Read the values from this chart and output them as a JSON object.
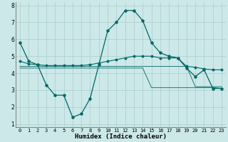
{
  "xlabel": "Humidex (Indice chaleur)",
  "bg_color": "#cce8e8",
  "grid_color": "#aacccc",
  "line_color": "#006666",
  "xlim": [
    -0.5,
    23.5
  ],
  "ylim": [
    0.8,
    8.2
  ],
  "xticks": [
    0,
    1,
    2,
    3,
    4,
    5,
    6,
    7,
    8,
    9,
    10,
    11,
    12,
    13,
    14,
    15,
    16,
    17,
    18,
    19,
    20,
    21,
    22,
    23
  ],
  "yticks": [
    1,
    2,
    3,
    4,
    5,
    6,
    7,
    8
  ],
  "line1_x": [
    0,
    1,
    2,
    3,
    4,
    5,
    6,
    7,
    8,
    9,
    10,
    11,
    12,
    13,
    14,
    15,
    16,
    17,
    18,
    19,
    20,
    21,
    22,
    23
  ],
  "line1_y": [
    5.8,
    4.7,
    4.5,
    3.3,
    2.7,
    2.7,
    1.4,
    1.6,
    2.5,
    4.5,
    6.5,
    7.0,
    7.7,
    7.7,
    7.1,
    5.8,
    5.2,
    5.0,
    4.9,
    4.3,
    3.8,
    4.2,
    3.1,
    3.1
  ],
  "line2_x": [
    0,
    1,
    2,
    3,
    4,
    5,
    6,
    7,
    8,
    9,
    10,
    11,
    12,
    13,
    14,
    15,
    16,
    17,
    18,
    19,
    20,
    21,
    22,
    23
  ],
  "line2_y": [
    4.7,
    4.55,
    4.5,
    4.45,
    4.45,
    4.45,
    4.45,
    4.45,
    4.5,
    4.6,
    4.7,
    4.8,
    4.9,
    5.0,
    5.0,
    5.0,
    4.9,
    4.9,
    4.9,
    4.4,
    4.35,
    4.25,
    4.2,
    4.2
  ],
  "line3_x": [
    0,
    1,
    2,
    3,
    4,
    5,
    6,
    7,
    8,
    9,
    10,
    11,
    12,
    13,
    14,
    15,
    16,
    17,
    18,
    19,
    20,
    21,
    22,
    23
  ],
  "line3_y": [
    4.4,
    4.4,
    4.4,
    4.4,
    4.4,
    4.4,
    4.4,
    4.4,
    4.4,
    4.4,
    4.4,
    4.4,
    4.4,
    4.4,
    4.4,
    4.4,
    4.4,
    4.4,
    4.4,
    4.4,
    3.2,
    3.2,
    3.2,
    3.2
  ],
  "line4_x": [
    0,
    1,
    2,
    3,
    4,
    5,
    6,
    7,
    8,
    9,
    10,
    11,
    12,
    13,
    14,
    15,
    16,
    17,
    18,
    19,
    20,
    21,
    22,
    23
  ],
  "line4_y": [
    4.3,
    4.3,
    4.3,
    4.3,
    4.3,
    4.3,
    4.3,
    4.3,
    4.3,
    4.3,
    4.3,
    4.3,
    4.3,
    4.3,
    4.3,
    3.15,
    3.15,
    3.15,
    3.15,
    3.15,
    3.15,
    3.15,
    3.15,
    3.1
  ],
  "xlabel_fontsize": 6.5,
  "tick_fontsize": 5.0
}
